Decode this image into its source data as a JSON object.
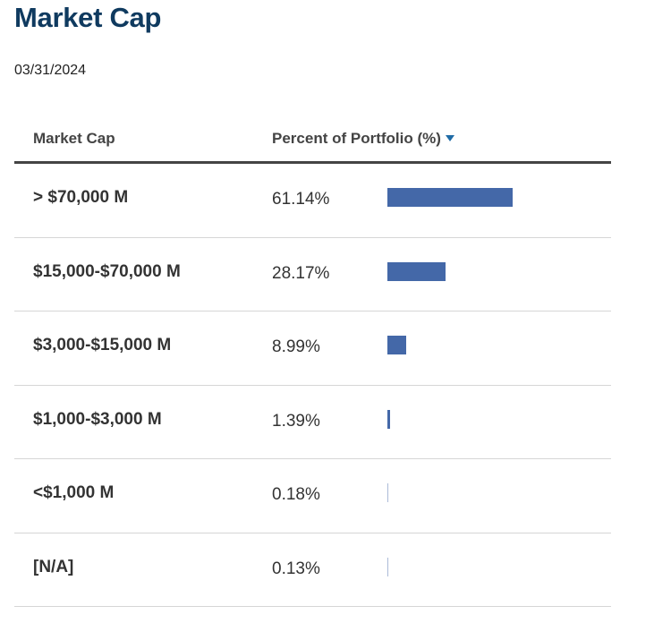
{
  "header": {
    "title": "Market Cap",
    "date": "03/31/2024"
  },
  "table": {
    "col_category": "Market Cap",
    "col_percent": "Percent of Portfolio (%)"
  },
  "colors": {
    "title": "#0f3a5f",
    "bar": "#4468a8",
    "sort_arrow": "#1f6ba6"
  },
  "chart_data": {
    "type": "bar",
    "orientation": "horizontal",
    "title": "Market Cap",
    "categories": [
      "> $70,000 M",
      "$15,000-$70,000 M",
      "$3,000-$15,000 M",
      "$1,000-$3,000 M",
      "<$1,000 M",
      "[N/A]"
    ],
    "values": [
      61.14,
      28.17,
      8.99,
      1.39,
      0.18,
      0.13
    ],
    "value_labels": [
      "61.14%",
      "28.17%",
      "8.99%",
      "1.39%",
      "0.18%",
      "0.13%"
    ],
    "xlim": [
      0,
      61.14
    ]
  }
}
